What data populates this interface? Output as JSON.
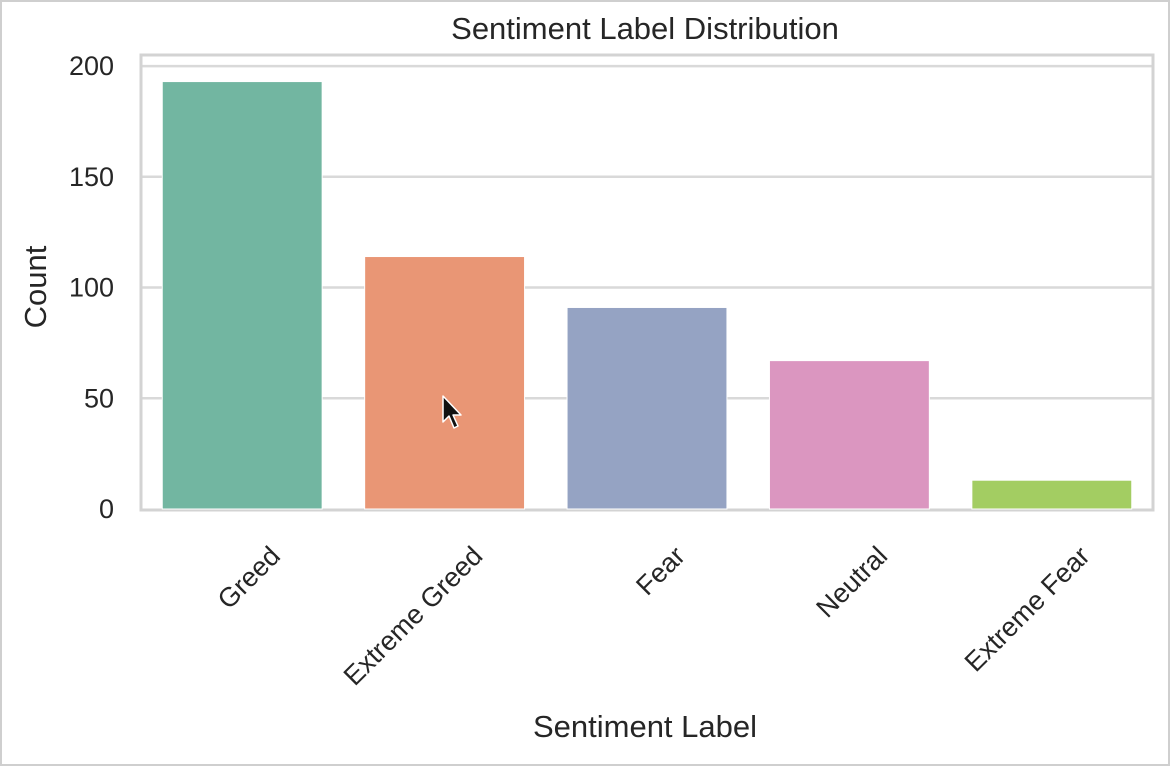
{
  "chart_data": {
    "type": "bar",
    "title": "Sentiment Label Distribution",
    "xlabel": "Sentiment Label",
    "ylabel": "Count",
    "categories": [
      "Greed",
      "Extreme Greed",
      "Fear",
      "Neutral",
      "Extreme Fear"
    ],
    "values": [
      193,
      114,
      91,
      67,
      13
    ],
    "colors": [
      "#72b6a1",
      "#e99675",
      "#95a3c3",
      "#db96c0",
      "#a3cd62"
    ],
    "ylim": [
      0,
      205
    ],
    "yticks": [
      0,
      50,
      100,
      150,
      200
    ],
    "grid": true,
    "legend": "none"
  },
  "cursor": {
    "icon": "mouse-pointer-icon"
  }
}
